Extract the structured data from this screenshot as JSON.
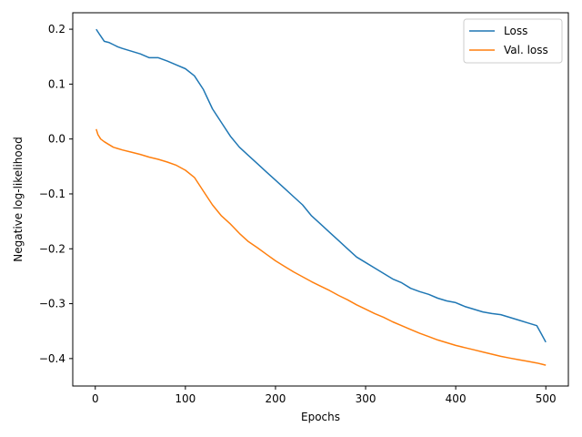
{
  "chart_data": {
    "type": "line",
    "xlabel": "Epochs",
    "ylabel": "Negative log-likelihood",
    "xlim": [
      -25,
      525
    ],
    "ylim": [
      -0.45,
      0.23
    ],
    "xticks": [
      0,
      100,
      200,
      300,
      400,
      500
    ],
    "yticks": [
      -0.4,
      -0.3,
      -0.2,
      -0.1,
      0.0,
      0.1,
      0.2
    ],
    "grid": false,
    "legend_position": "top-right",
    "series": [
      {
        "name": "Loss",
        "color": "#1f77b4",
        "x": [
          1,
          5,
          10,
          15,
          20,
          25,
          30,
          40,
          50,
          60,
          70,
          80,
          90,
          100,
          110,
          120,
          130,
          140,
          150,
          160,
          170,
          180,
          190,
          200,
          210,
          220,
          230,
          240,
          250,
          260,
          270,
          280,
          290,
          300,
          310,
          320,
          330,
          340,
          350,
          360,
          370,
          380,
          390,
          400,
          410,
          420,
          430,
          440,
          450,
          460,
          470,
          480,
          490,
          495,
          500
        ],
        "y": [
          0.2,
          0.19,
          0.178,
          0.176,
          0.172,
          0.168,
          0.165,
          0.16,
          0.155,
          0.148,
          0.148,
          0.142,
          0.135,
          0.128,
          0.115,
          0.09,
          0.055,
          0.03,
          0.005,
          -0.015,
          -0.03,
          -0.045,
          -0.06,
          -0.075,
          -0.09,
          -0.105,
          -0.12,
          -0.14,
          -0.155,
          -0.17,
          -0.185,
          -0.2,
          -0.215,
          -0.225,
          -0.235,
          -0.245,
          -0.255,
          -0.262,
          -0.272,
          -0.278,
          -0.283,
          -0.29,
          -0.295,
          -0.298,
          -0.305,
          -0.31,
          -0.315,
          -0.318,
          -0.32,
          -0.325,
          -0.33,
          -0.335,
          -0.34,
          -0.355,
          -0.37
        ]
      },
      {
        "name": "Val. loss",
        "color": "#ff7f0e",
        "x": [
          1,
          3,
          6,
          10,
          15,
          20,
          30,
          40,
          50,
          60,
          70,
          80,
          90,
          100,
          110,
          120,
          130,
          140,
          150,
          160,
          170,
          180,
          190,
          200,
          210,
          220,
          230,
          240,
          250,
          260,
          270,
          280,
          290,
          300,
          310,
          320,
          330,
          340,
          350,
          360,
          370,
          380,
          390,
          400,
          410,
          420,
          430,
          440,
          450,
          460,
          470,
          480,
          490,
          495,
          500
        ],
        "y": [
          0.018,
          0.008,
          0.0,
          -0.005,
          -0.01,
          -0.015,
          -0.02,
          -0.024,
          -0.028,
          -0.033,
          -0.037,
          -0.042,
          -0.048,
          -0.057,
          -0.07,
          -0.095,
          -0.12,
          -0.14,
          -0.155,
          -0.172,
          -0.187,
          -0.198,
          -0.21,
          -0.222,
          -0.232,
          -0.242,
          -0.251,
          -0.26,
          -0.268,
          -0.276,
          -0.285,
          -0.293,
          -0.302,
          -0.31,
          -0.318,
          -0.325,
          -0.333,
          -0.34,
          -0.347,
          -0.354,
          -0.36,
          -0.366,
          -0.371,
          -0.376,
          -0.38,
          -0.384,
          -0.388,
          -0.392,
          -0.396,
          -0.399,
          -0.402,
          -0.405,
          -0.408,
          -0.41,
          -0.412
        ]
      }
    ]
  }
}
